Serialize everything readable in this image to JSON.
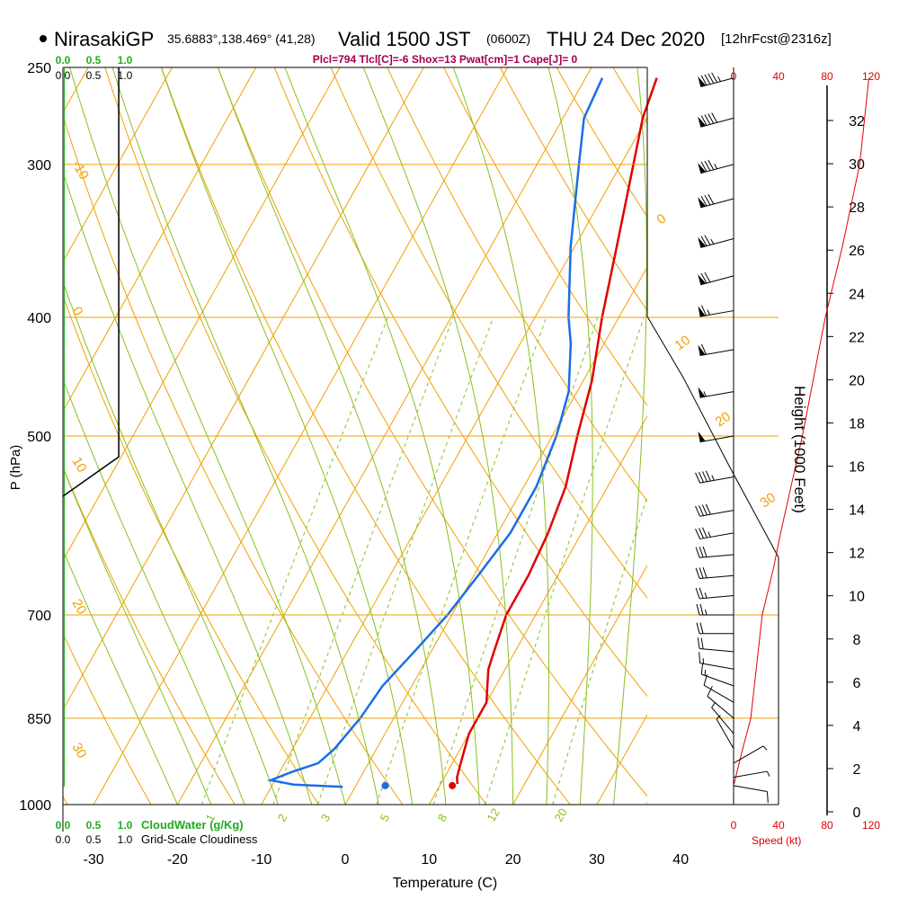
{
  "header": {
    "station": "NirasakiGP",
    "coords": "35.6883°,138.469° (41,28)",
    "valid_prefix": "Valid 1500 JST",
    "valid_utc": "(0600Z)",
    "valid_date": "THU 24 Dec 2020",
    "forecast": "[12hrFcst@2316z]",
    "indices": "Plcl=794 Tlcl[C]=-6 Shox=13 Pwat[cm]=1 Cape[J]= 0"
  },
  "colors": {
    "temperature": "#e00000",
    "dewpoint": "#1a6ee6",
    "isotherm": "#f0a000",
    "dry_adiabat": "#f0a000",
    "moist_adiabat": "#88c020",
    "mixing_ratio": "#88c020",
    "cloud_water": "#22aa22",
    "cloudiness": "#000000",
    "speed": "#e00000",
    "indices_text": "#a0004a"
  },
  "chart_data": {
    "type": "skew-t",
    "xlabel": "Temperature (C)",
    "ylabel": "P (hPa)",
    "y2label": "Height (1000 Feet)",
    "pressure_ticks": [
      "250",
      "300",
      "400",
      "500",
      "700",
      "850",
      "1000"
    ],
    "pressure_values": [
      250,
      300,
      400,
      500,
      700,
      850,
      1000
    ],
    "temperature_ticks": [
      "-30",
      "-20",
      "-10",
      "0",
      "10",
      "20",
      "30",
      "40"
    ],
    "temperature_values": [
      -30,
      -20,
      -10,
      0,
      10,
      20,
      30,
      40
    ],
    "height_ticks": [
      "0",
      "2",
      "4",
      "6",
      "8",
      "10",
      "12",
      "14",
      "16",
      "18",
      "20",
      "22",
      "24",
      "26",
      "28",
      "30",
      "32"
    ],
    "cloud_water": {
      "label": "CloudWater (g/Kg)",
      "ticks": [
        "0.0",
        "0.5",
        "1.0"
      ]
    },
    "cloudiness": {
      "label": "Grid-Scale Cloudiness",
      "ticks": [
        "0.0",
        "0.5",
        "1.0"
      ]
    },
    "speed_axis": {
      "label": "Speed (kt)",
      "ticks": [
        "0",
        "40",
        "80",
        "120"
      ]
    },
    "temperature_profile": [
      {
        "p": 962,
        "t": 12.0
      },
      {
        "p": 950,
        "t": 11.5
      },
      {
        "p": 925,
        "t": 11.0
      },
      {
        "p": 900,
        "t": 10.5
      },
      {
        "p": 875,
        "t": 10.0
      },
      {
        "p": 850,
        "t": 10.0
      },
      {
        "p": 825,
        "t": 10.0
      },
      {
        "p": 800,
        "t": 9.0
      },
      {
        "p": 775,
        "t": 8.0
      },
      {
        "p": 750,
        "t": 7.5
      },
      {
        "p": 700,
        "t": 6.5
      },
      {
        "p": 650,
        "t": 6.5
      },
      {
        "p": 600,
        "t": 6.0
      },
      {
        "p": 550,
        "t": 5.0
      },
      {
        "p": 500,
        "t": 3.0
      },
      {
        "p": 450,
        "t": 1.0
      },
      {
        "p": 400,
        "t": -2.0
      },
      {
        "p": 350,
        "t": -5.0
      },
      {
        "p": 300,
        "t": -8.5
      },
      {
        "p": 275,
        "t": -10.5
      },
      {
        "p": 255,
        "t": -11.5
      }
    ],
    "dewpoint_profile": [
      {
        "p": 967,
        "t": -1.5
      },
      {
        "p": 963,
        "t": -7.5
      },
      {
        "p": 955,
        "t": -10.5
      },
      {
        "p": 940,
        "t": -8.5
      },
      {
        "p": 925,
        "t": -6.0
      },
      {
        "p": 900,
        "t": -5.0
      },
      {
        "p": 850,
        "t": -4.0
      },
      {
        "p": 800,
        "t": -3.5
      },
      {
        "p": 750,
        "t": -2.0
      },
      {
        "p": 700,
        "t": -0.5
      },
      {
        "p": 650,
        "t": 0.5
      },
      {
        "p": 600,
        "t": 1.5
      },
      {
        "p": 550,
        "t": 1.5
      },
      {
        "p": 500,
        "t": 0.5
      },
      {
        "p": 460,
        "t": -1.0
      },
      {
        "p": 420,
        "t": -4.0
      },
      {
        "p": 400,
        "t": -6.0
      },
      {
        "p": 350,
        "t": -10.5
      },
      {
        "p": 300,
        "t": -15.0
      },
      {
        "p": 275,
        "t": -17.5
      },
      {
        "p": 255,
        "t": -18.0
      }
    ],
    "surface_temperature": 11.5,
    "surface_dewpoint": 3.5,
    "surface_pressure": 965,
    "isotherm_labels": [
      "-10",
      "0",
      "10",
      "20",
      "30",
      "-10",
      "0",
      "10",
      "20",
      "30"
    ],
    "mixing_ratio_labels": [
      "1",
      "2",
      "3",
      "5",
      "8",
      "12",
      "20"
    ],
    "cloudiness_profile": [
      {
        "p": 250,
        "c": 0.9
      },
      {
        "p": 400,
        "c": 0.9
      },
      {
        "p": 500,
        "c": 0.9
      },
      {
        "p": 520,
        "c": 0.9
      },
      {
        "p": 560,
        "c": 0.0
      }
    ],
    "wind_speed_profile": [
      {
        "p": 965,
        "s": 0
      },
      {
        "p": 900,
        "s": 8
      },
      {
        "p": 850,
        "s": 15
      },
      {
        "p": 700,
        "s": 25
      },
      {
        "p": 640,
        "s": 35
      },
      {
        "p": 600,
        "s": 41
      },
      {
        "p": 500,
        "s": 60
      },
      {
        "p": 400,
        "s": 80
      },
      {
        "p": 350,
        "s": 95
      },
      {
        "p": 300,
        "s": 110
      },
      {
        "p": 255,
        "s": 118
      }
    ],
    "wind_barbs": [
      {
        "p": 255,
        "dir": 255,
        "spd": 95
      },
      {
        "p": 275,
        "dir": 255,
        "spd": 90
      },
      {
        "p": 300,
        "dir": 255,
        "spd": 85
      },
      {
        "p": 320,
        "dir": 255,
        "spd": 80
      },
      {
        "p": 345,
        "dir": 255,
        "spd": 75
      },
      {
        "p": 370,
        "dir": 255,
        "spd": 70
      },
      {
        "p": 395,
        "dir": 260,
        "spd": 65
      },
      {
        "p": 425,
        "dir": 260,
        "spd": 60
      },
      {
        "p": 460,
        "dir": 260,
        "spd": 55
      },
      {
        "p": 500,
        "dir": 260,
        "spd": 50
      },
      {
        "p": 540,
        "dir": 260,
        "spd": 45
      },
      {
        "p": 575,
        "dir": 260,
        "spd": 40
      },
      {
        "p": 600,
        "dir": 260,
        "spd": 35
      },
      {
        "p": 625,
        "dir": 265,
        "spd": 30
      },
      {
        "p": 650,
        "dir": 265,
        "spd": 30
      },
      {
        "p": 675,
        "dir": 265,
        "spd": 28
      },
      {
        "p": 700,
        "dir": 270,
        "spd": 26
      },
      {
        "p": 725,
        "dir": 270,
        "spd": 24
      },
      {
        "p": 750,
        "dir": 275,
        "spd": 22
      },
      {
        "p": 775,
        "dir": 280,
        "spd": 18
      },
      {
        "p": 800,
        "dir": 290,
        "spd": 15
      },
      {
        "p": 825,
        "dir": 300,
        "spd": 12
      },
      {
        "p": 850,
        "dir": 310,
        "spd": 10
      },
      {
        "p": 875,
        "dir": 320,
        "spd": 8
      },
      {
        "p": 900,
        "dir": 330,
        "spd": 6
      },
      {
        "p": 925,
        "dir": 60,
        "spd": 6
      },
      {
        "p": 950,
        "dir": 80,
        "spd": 8
      },
      {
        "p": 965,
        "dir": 100,
        "spd": 10
      }
    ]
  }
}
